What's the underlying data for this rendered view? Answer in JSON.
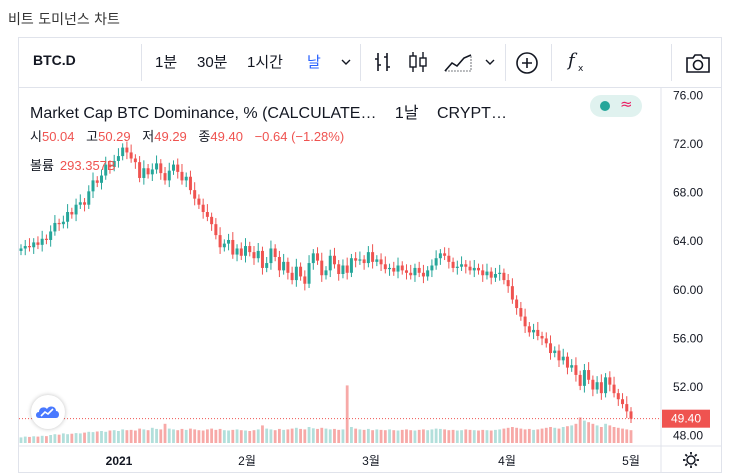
{
  "page_title": "비트 도미넌스 차트",
  "toolbar": {
    "symbol": "BTC.D",
    "intervals": [
      "1분",
      "30분",
      "1시간",
      "날"
    ],
    "active_interval": "날"
  },
  "legend": {
    "name": "Market Cap BTC Dominance, % (CALCULATE…",
    "interval": "1날",
    "source": "CRYPT…"
  },
  "ohlc": {
    "open_label": "시",
    "open": "50.04",
    "high_label": "고",
    "high": "50.29",
    "low_label": "저",
    "low": "49.29",
    "close_label": "종",
    "close": "49.40",
    "change": "−0.64 (−1.28%)"
  },
  "volume": {
    "label": "볼륨",
    "value": "293.357B"
  },
  "colors": {
    "up": "#26a69a",
    "down": "#ef5350",
    "vol_up": "#b2dfdb",
    "vol_down": "#f7a9a7",
    "price_tag": "#ef5350"
  },
  "chart_data": {
    "type": "candlestick",
    "y_ticks": [
      "76.00",
      "72.00",
      "68.00",
      "64.00",
      "60.00",
      "56.00",
      "52.00",
      "48.00"
    ],
    "ylim": [
      47.4,
      76.6
    ],
    "x_labels": [
      "2021",
      "2월",
      "3월",
      "4월",
      "5월"
    ],
    "last_price": "49.40",
    "last_price_value": 49.4,
    "closes": [
      63.4,
      63.6,
      63.5,
      63.9,
      63.7,
      64.2,
      64.1,
      64.8,
      65.5,
      65.4,
      65.6,
      66.4,
      66.2,
      67.0,
      67.2,
      67.0,
      68.1,
      69.0,
      68.8,
      69.4,
      70.3,
      70.1,
      70.6,
      71.0,
      71.7,
      71.3,
      70.8,
      70.5,
      69.2,
      70.0,
      69.5,
      69.9,
      70.4,
      69.6,
      69.0,
      69.8,
      70.3,
      69.7,
      69.0,
      69.3,
      68.2,
      67.5,
      67.0,
      66.4,
      66.0,
      65.4,
      64.5,
      63.5,
      63.8,
      64.1,
      62.9,
      63.4,
      62.8,
      63.6,
      63.1,
      62.6,
      63.2,
      61.8,
      62.2,
      63.4,
      62.7,
      61.6,
      62.3,
      61.4,
      60.8,
      61.9,
      61.1,
      60.5,
      62.2,
      63.0,
      62.4,
      61.2,
      61.6,
      62.8,
      62.1,
      61.3,
      62.0,
      61.4,
      62.6,
      62.4,
      62.5,
      62.2,
      63.1,
      62.3,
      62.5,
      62.1,
      61.7,
      61.8,
      61.5,
      62.0,
      61.6,
      61.4,
      61.2,
      61.8,
      61.4,
      61.1,
      61.6,
      62.0,
      62.6,
      63.0,
      62.8,
      62.3,
      61.8,
      61.9,
      62.1,
      61.9,
      61.6,
      61.8,
      61.6,
      61.2,
      61.5,
      61.0,
      61.3,
      61.4,
      60.8,
      60.3,
      59.2,
      58.5,
      57.8,
      57.0,
      56.5,
      56.7,
      56.2,
      56.0,
      55.6,
      54.8,
      55.0,
      54.2,
      54.5,
      53.6,
      53.8,
      53.0,
      52.1,
      53.4,
      52.6,
      51.8,
      52.4,
      51.5,
      52.8,
      52.2,
      51.5,
      51.0,
      50.6,
      50.0,
      49.4
    ],
    "volumes": [
      0.35,
      0.4,
      0.38,
      0.42,
      0.4,
      0.45,
      0.43,
      0.5,
      0.55,
      0.52,
      0.6,
      0.55,
      0.58,
      0.62,
      0.6,
      0.65,
      0.7,
      0.68,
      0.72,
      0.75,
      0.7,
      0.78,
      0.8,
      0.75,
      0.85,
      0.8,
      0.82,
      0.78,
      0.9,
      0.85,
      0.8,
      0.95,
      0.88,
      0.85,
      1.2,
      0.9,
      0.85,
      0.8,
      0.88,
      0.82,
      0.9,
      0.85,
      0.8,
      0.78,
      0.85,
      0.9,
      0.82,
      0.88,
      0.8,
      0.78,
      0.82,
      0.85,
      0.8,
      0.78,
      0.75,
      0.8,
      0.85,
      1.1,
      0.9,
      0.85,
      0.8,
      0.88,
      0.82,
      0.85,
      0.9,
      0.95,
      0.88,
      0.85,
      1.0,
      0.92,
      0.88,
      0.95,
      0.9,
      0.85,
      0.88,
      0.82,
      0.85,
      3.6,
      1.0,
      0.9,
      0.85,
      0.82,
      0.88,
      0.8,
      0.85,
      0.82,
      0.8,
      0.85,
      0.8,
      0.78,
      0.82,
      0.85,
      0.8,
      0.78,
      0.82,
      0.85,
      0.8,
      0.85,
      0.9,
      0.88,
      0.85,
      0.8,
      0.82,
      0.78,
      0.8,
      0.85,
      0.82,
      0.8,
      0.78,
      0.82,
      0.8,
      0.78,
      0.82,
      0.85,
      0.9,
      0.95,
      1.0,
      0.95,
      0.9,
      0.85,
      0.88,
      0.82,
      0.85,
      0.9,
      0.95,
      1.0,
      0.95,
      0.9,
      1.0,
      1.05,
      1.1,
      1.2,
      1.6,
      1.4,
      1.3,
      1.2,
      1.1,
      1.0,
      1.2,
      1.1,
      1.0,
      0.95,
      0.9,
      0.85,
      0.8
    ]
  }
}
